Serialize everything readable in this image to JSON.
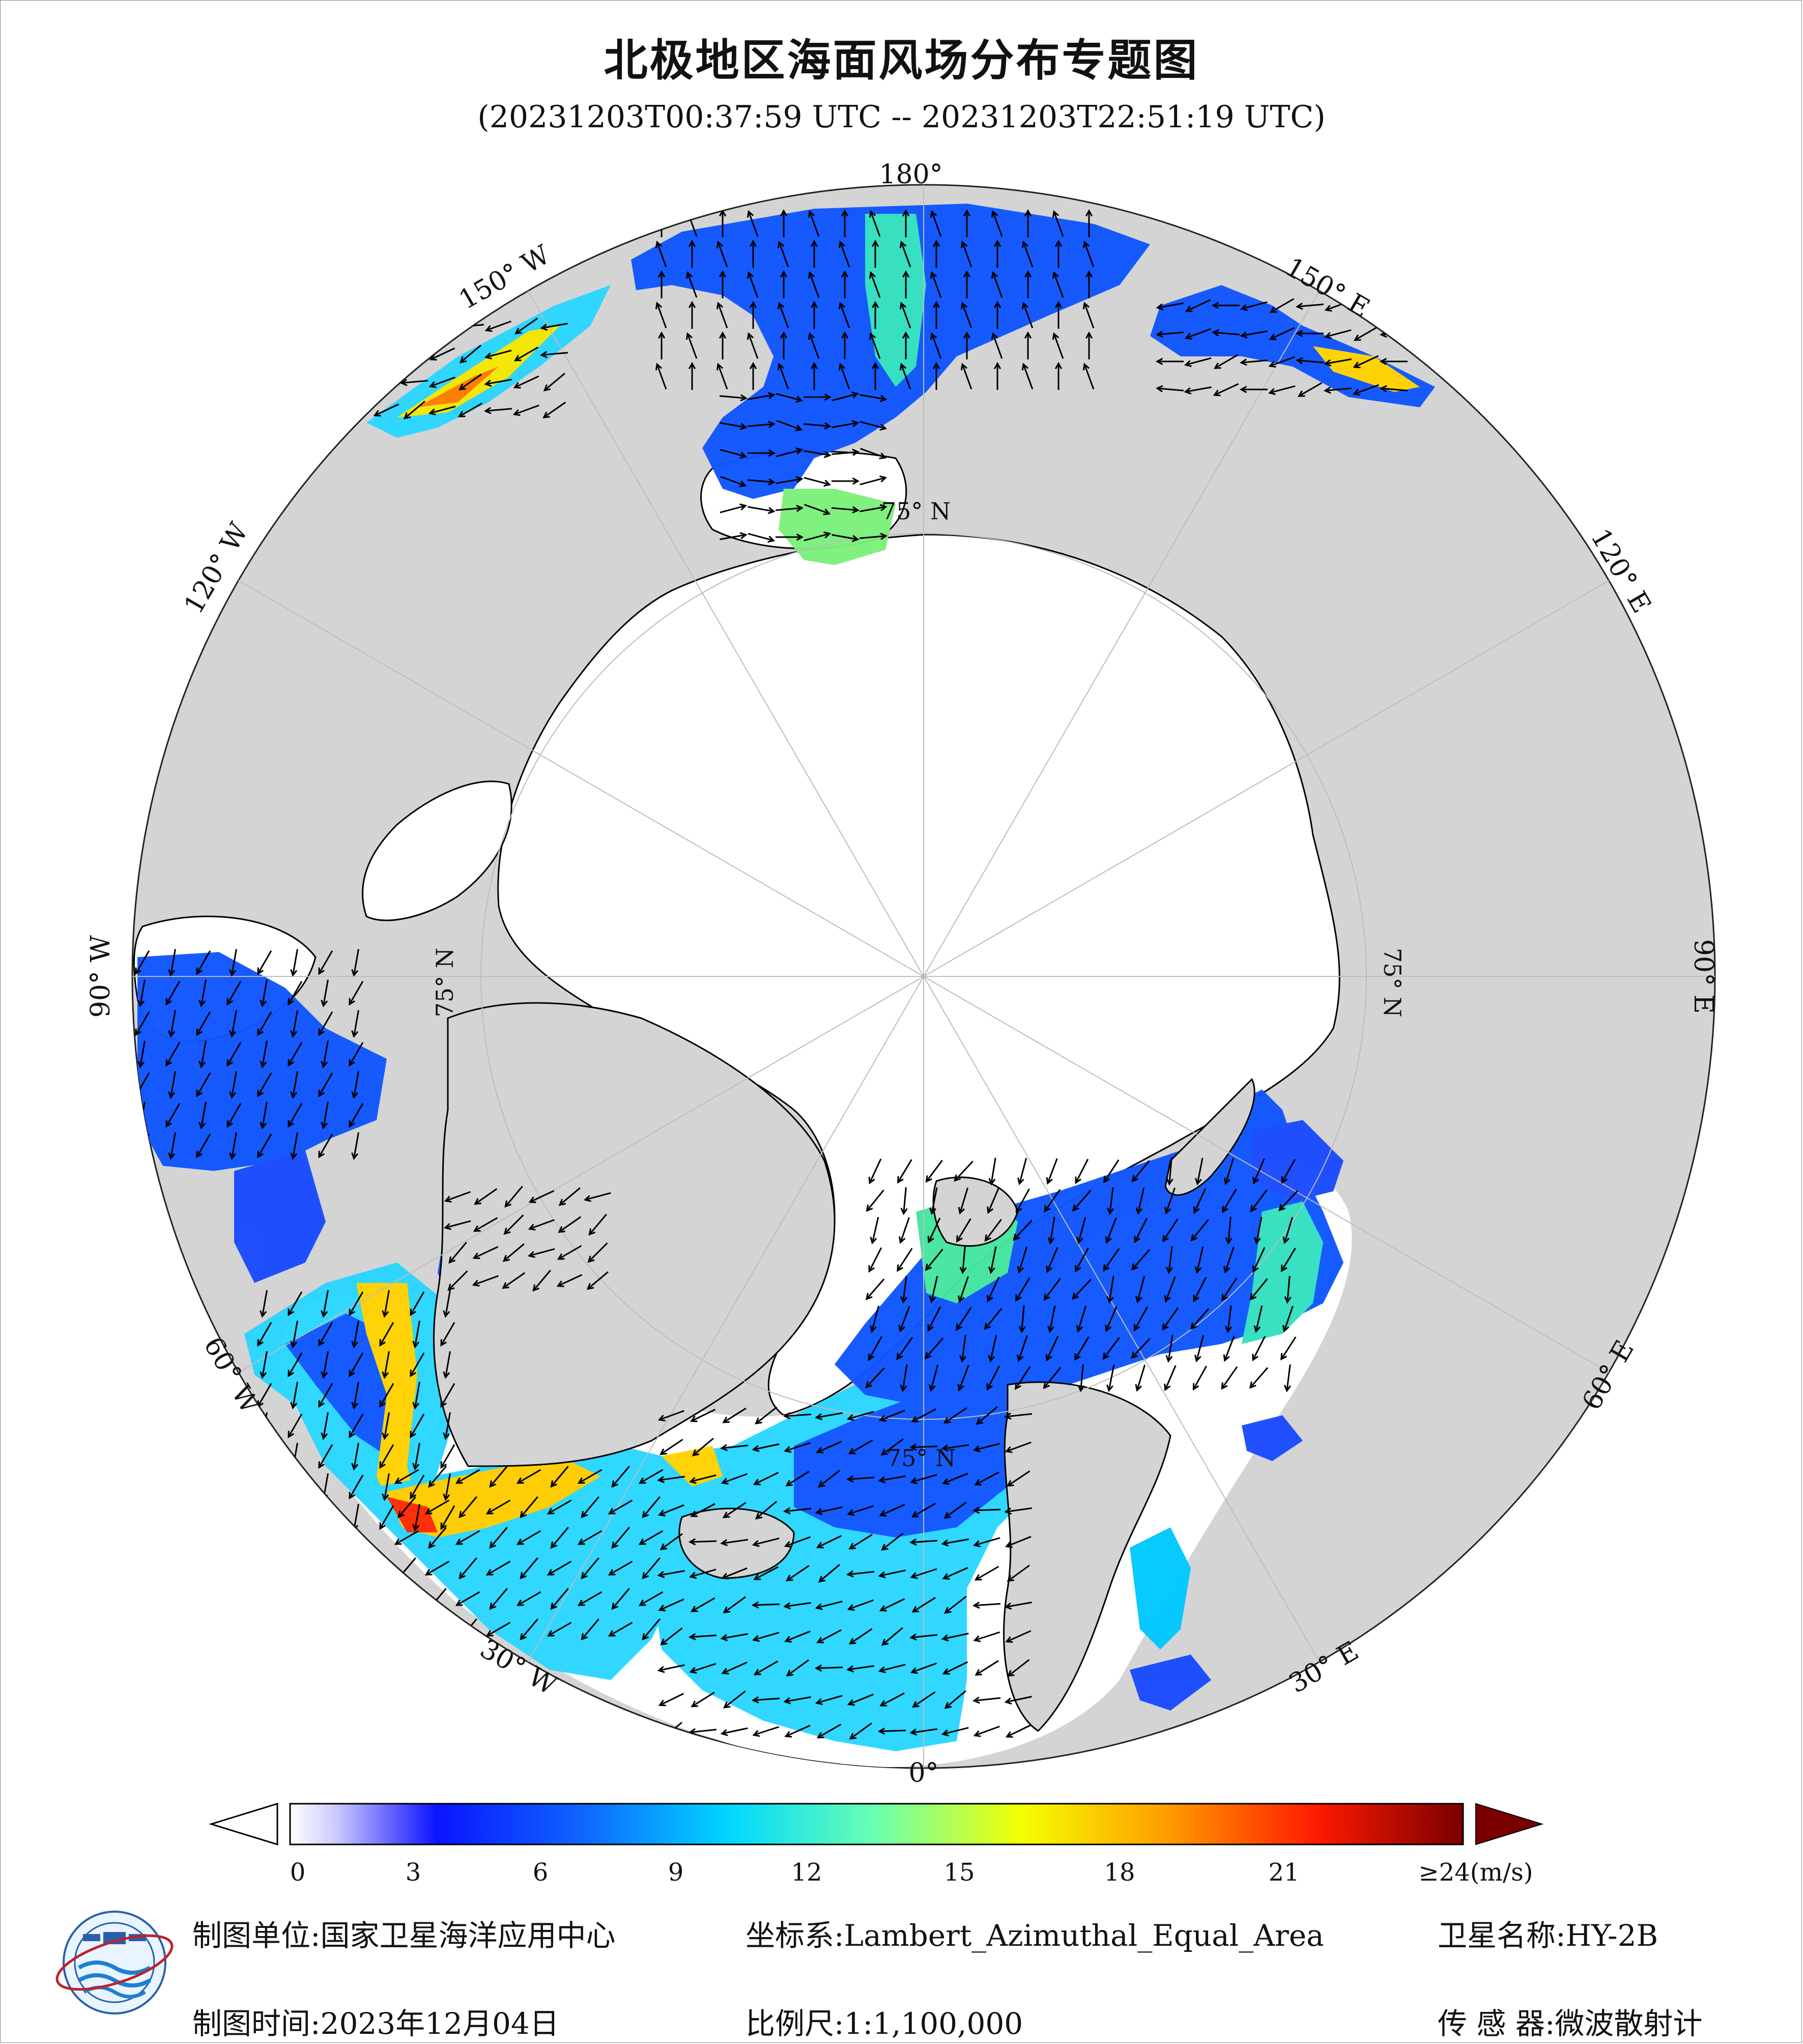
{
  "title": "北极地区海面风场分布专题图",
  "subtitle": "(20231203T00:37:59 UTC -- 20231203T22:51:19 UTC)",
  "map": {
    "projection_labels": {
      "lon_180": "180°",
      "lon_150w": "150° W",
      "lon_120w": "120° W",
      "lon_90w": "90° W",
      "lon_60w": "60° W",
      "lon_30w": "30° W",
      "lon_0": "0°",
      "lon_30e": "30° E",
      "lon_60e": "60° E",
      "lon_90e": "90° E",
      "lon_120e": "120° E",
      "lon_150e": "150° E",
      "lat_75n_top": "75° N",
      "lat_75n_right": "75° N",
      "lat_75n_bottom": "75° N",
      "lat_75n_left": "75° N"
    },
    "colors": {
      "ocean_no_data": "#ffffff",
      "land": "#d4d4d4",
      "coast": "#000000",
      "grid": "#bdbdbd"
    }
  },
  "colorbar": {
    "unit": "(m/s)",
    "tick_labels": [
      "0",
      "3",
      "6",
      "9",
      "12",
      "15",
      "18",
      "21",
      "≥24(m/s)"
    ],
    "tick_values": [
      0,
      3,
      6,
      9,
      12,
      15,
      18,
      21,
      24
    ],
    "min": 0,
    "max": 24,
    "extend": "both"
  },
  "footer": {
    "unit_label": "制图单位:",
    "unit_value": "国家卫星海洋应用中心",
    "crs_label": "坐标系:",
    "crs_value": "Lambert_Azimuthal_Equal_Area",
    "satellite_label": "卫星名称:",
    "satellite_value": "HY-2B",
    "time_label": "制图时间:",
    "time_value": "2023年12月04日",
    "scale_label": "比例尺:",
    "scale_value": "1:1,100,000",
    "sensor_label": "传 感 器:",
    "sensor_value": "微波散射计",
    "logo": "nsoas-logo"
  }
}
